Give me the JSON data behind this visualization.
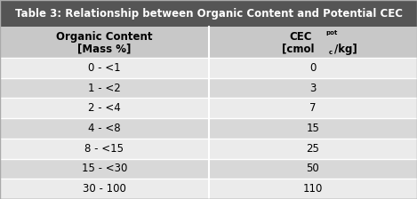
{
  "title": "Table 3: Relationship between Organic Content and Potential CEC",
  "col1_header_line1": "Organic Content",
  "col1_header_line2": "[Mass %]",
  "rows": [
    [
      "0 - <1",
      "0"
    ],
    [
      "1 - <2",
      "3"
    ],
    [
      "2 - <4",
      "7"
    ],
    [
      "4 - <8",
      "15"
    ],
    [
      "8 - <15",
      "25"
    ],
    [
      "15 - <30",
      "50"
    ],
    [
      "30 - 100",
      "110"
    ]
  ],
  "title_bg": "#555555",
  "title_fg": "#ffffff",
  "header_bg": "#c8c8c8",
  "header_fg": "#000000",
  "row_bg_light": "#ebebeb",
  "row_bg_dark": "#d8d8d8",
  "divider_color": "#ffffff",
  "outer_border": "#aaaaaa",
  "title_fontsize": 8.5,
  "header_fontsize": 8.5,
  "cell_fontsize": 8.5,
  "col_split": 0.5
}
